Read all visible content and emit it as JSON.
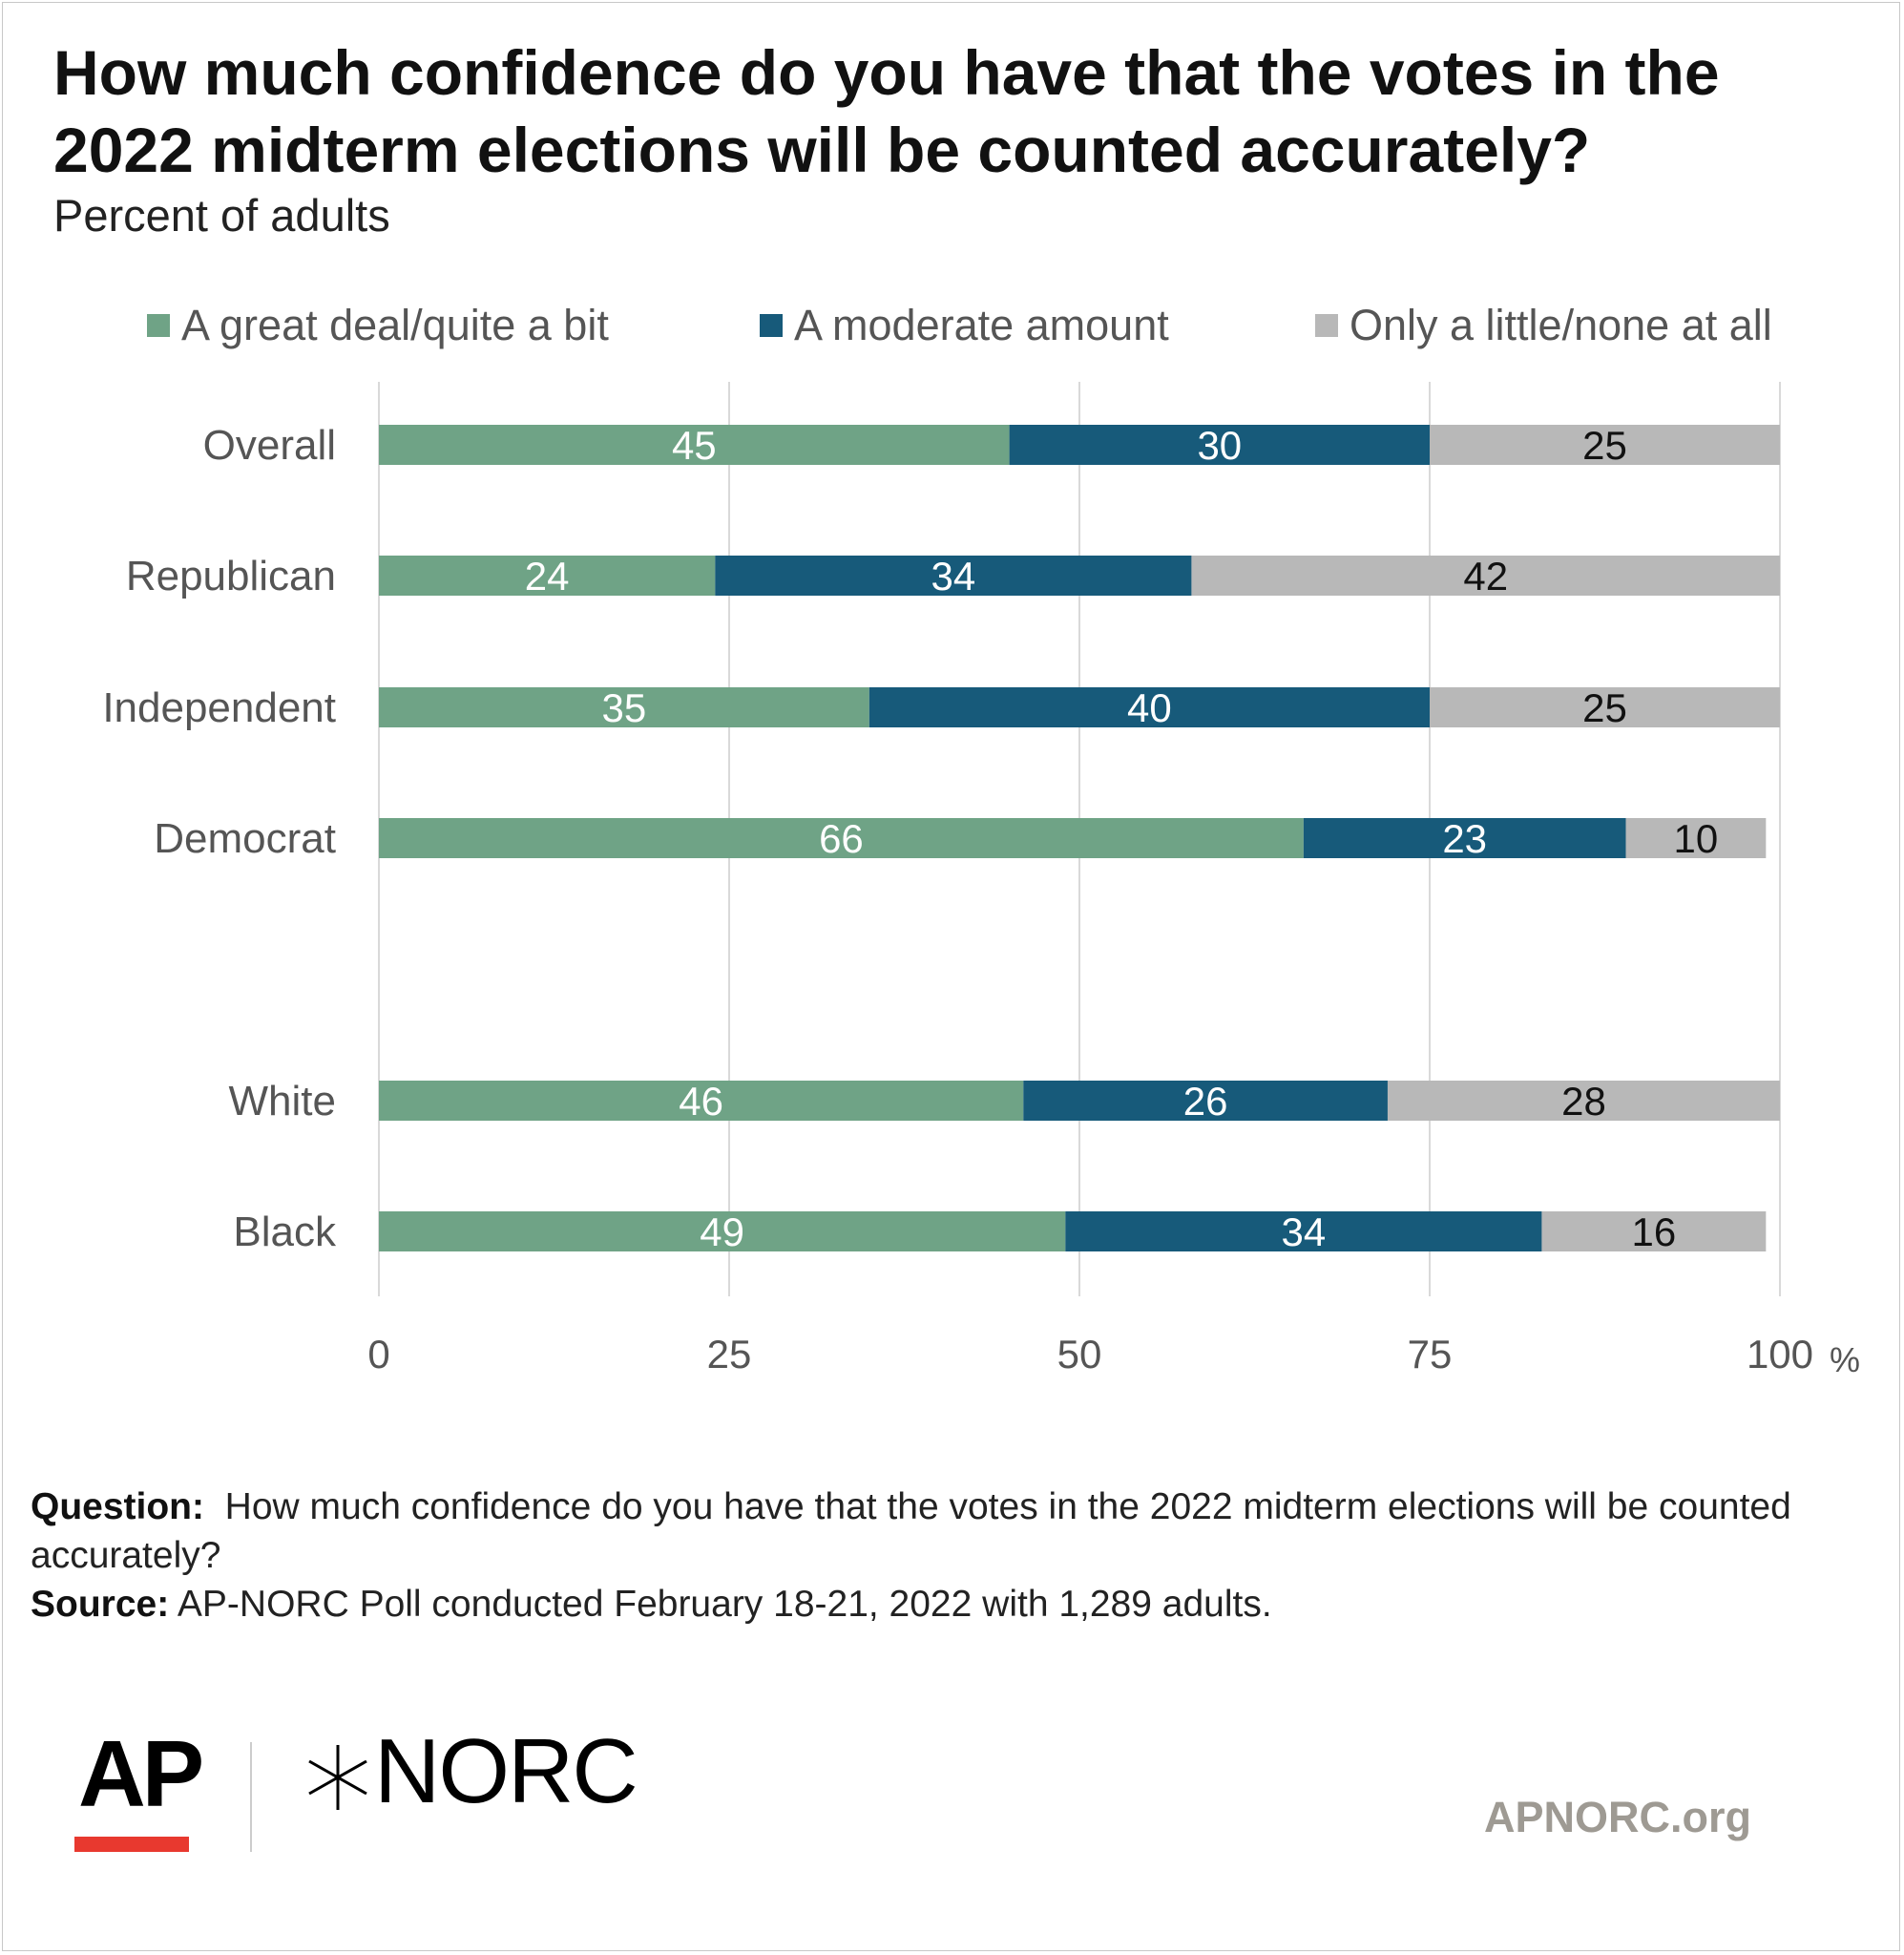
{
  "title": "How much confidence do you have that the votes in the 2022 midterm elections will be counted accurately?",
  "subtitle": "Percent of adults",
  "legend": [
    {
      "label": "A great deal/quite a bit",
      "color": "#6fa386"
    },
    {
      "label": "A moderate amount",
      "color": "#175a7a"
    },
    {
      "label": "Only a little/none at all",
      "color": "#b8b8b8"
    }
  ],
  "chart_data": {
    "type": "bar",
    "orientation": "horizontal",
    "stacked": true,
    "categories": [
      "Overall",
      "Republican",
      "Independent",
      "Democrat",
      "White",
      "Black"
    ],
    "series": [
      {
        "name": "A great deal/quite a bit",
        "color": "#6fa386",
        "label_color": "#ffffff",
        "values": [
          45,
          24,
          35,
          66,
          46,
          49
        ]
      },
      {
        "name": "A moderate amount",
        "color": "#175a7a",
        "label_color": "#ffffff",
        "values": [
          30,
          34,
          40,
          23,
          26,
          34
        ]
      },
      {
        "name": "Only a little/none at all",
        "color": "#b8b8b8",
        "label_color": "#111111",
        "values": [
          25,
          42,
          25,
          10,
          28,
          16
        ]
      }
    ],
    "xlim": [
      0,
      100
    ],
    "xticks": [
      "0",
      "25",
      "50",
      "75",
      "100"
    ],
    "xunit": "%",
    "grid": true,
    "legend_position": "top"
  },
  "footer": {
    "question_label": "Question:",
    "question_text": "How much confidence do you have that the votes in the 2022 midterm elections will be counted accurately?",
    "source_label": "Source:",
    "source_text": "AP-NORC Poll conducted February 18-21, 2022 with 1,289 adults."
  },
  "logos": {
    "ap": "AP",
    "norc": "NORC",
    "norc_mark_icon": "norc-star-icon",
    "site": "APNORC.org"
  }
}
